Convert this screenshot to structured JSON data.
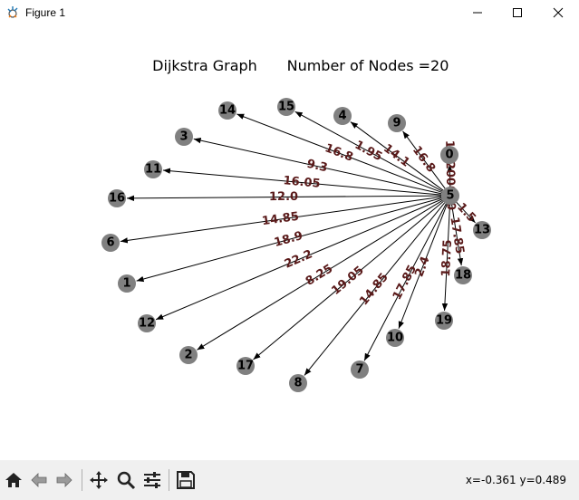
{
  "window": {
    "title": "Figure 1",
    "icons": [
      "app-icon",
      "minimize-icon",
      "maximize-icon",
      "close-icon"
    ]
  },
  "plot": {
    "title_left": "Dijkstra Graph",
    "title_right": "Number of Nodes =20",
    "colors": {
      "node": "#808080",
      "edge": "#000000",
      "edge_label": "#5a1a1a",
      "node_label": "#000000"
    }
  },
  "chart_data": {
    "type": "graph",
    "title": "Dijkstra Graph     Number of Nodes =20",
    "center_node": "5",
    "nodes": [
      "0",
      "1",
      "2",
      "3",
      "4",
      "5",
      "6",
      "7",
      "8",
      "9",
      "10",
      "11",
      "12",
      "13",
      "14",
      "15",
      "16",
      "17",
      "18",
      "19"
    ],
    "edges": [
      {
        "from": "5",
        "to": "0",
        "weight": "13.200000"
      },
      {
        "from": "5",
        "to": "9",
        "weight": "16.8"
      },
      {
        "from": "5",
        "to": "4",
        "weight": "14.1"
      },
      {
        "from": "5",
        "to": "15",
        "weight": "1.95"
      },
      {
        "from": "5",
        "to": "14",
        "weight": "16.8"
      },
      {
        "from": "5",
        "to": "3",
        "weight": "9.3"
      },
      {
        "from": "5",
        "to": "11",
        "weight": "16.05"
      },
      {
        "from": "5",
        "to": "16",
        "weight": "12.0"
      },
      {
        "from": "5",
        "to": "6",
        "weight": "14.85"
      },
      {
        "from": "5",
        "to": "1",
        "weight": "18.9"
      },
      {
        "from": "5",
        "to": "12",
        "weight": "22.2"
      },
      {
        "from": "5",
        "to": "2",
        "weight": "8.25"
      },
      {
        "from": "5",
        "to": "17",
        "weight": "19.05"
      },
      {
        "from": "5",
        "to": "8",
        "weight": "14.85"
      },
      {
        "from": "5",
        "to": "7",
        "weight": "17.85"
      },
      {
        "from": "5",
        "to": "10",
        "weight": "2.4"
      },
      {
        "from": "5",
        "to": "19",
        "weight": "18.75"
      },
      {
        "from": "5",
        "to": "18",
        "weight": "17.85"
      },
      {
        "from": "5",
        "to": "13",
        "weight": "1.5"
      }
    ]
  },
  "toolbar": {
    "buttons": [
      {
        "name": "home-button",
        "icon": "home-icon"
      },
      {
        "name": "back-button",
        "icon": "back-arrow-icon"
      },
      {
        "name": "forward-button",
        "icon": "forward-arrow-icon"
      },
      {
        "name": "pan-button",
        "icon": "move-icon"
      },
      {
        "name": "zoom-button",
        "icon": "zoom-icon"
      },
      {
        "name": "configure-subplots-button",
        "icon": "sliders-icon"
      },
      {
        "name": "save-button",
        "icon": "save-icon"
      }
    ],
    "coords": "x=-0.361 y=0.489"
  }
}
